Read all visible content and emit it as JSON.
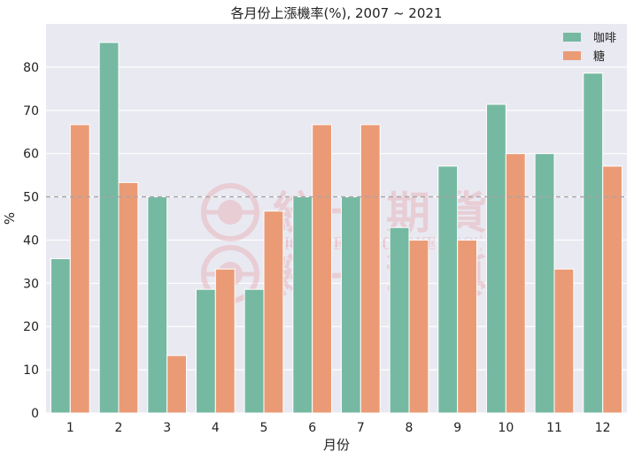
{
  "chart_data": {
    "type": "bar",
    "title": "各月份上漲機率(%), 2007 ~ 2021",
    "xlabel": "月份",
    "ylabel": "%",
    "ylim": [
      0,
      90
    ],
    "yticks": [
      0,
      10,
      20,
      30,
      40,
      50,
      60,
      70,
      80
    ],
    "categories": [
      "1",
      "2",
      "3",
      "4",
      "5",
      "6",
      "7",
      "8",
      "9",
      "10",
      "11",
      "12"
    ],
    "series": [
      {
        "name": "咖啡",
        "color": "#76b9a2",
        "values": [
          35.7,
          85.7,
          50.0,
          28.6,
          28.6,
          50.0,
          50.0,
          42.9,
          57.1,
          71.4,
          60.0,
          78.6
        ]
      },
      {
        "name": "糖",
        "color": "#ea9b76",
        "values": [
          66.7,
          53.3,
          13.3,
          33.3,
          46.7,
          66.7,
          66.7,
          40.0,
          40.0,
          60.0,
          33.3,
          57.1
        ]
      }
    ],
    "reference_line": {
      "value": 50,
      "style": "dashed",
      "color": "#a6a6a6"
    },
    "legend_position": "top-right",
    "grid": true,
    "background": "#e9e9f1"
  },
  "watermark": {
    "name_cn": "統一期貨",
    "name_en": "PRESIDENT FUTURES CO., LTD.",
    "color": "#e8a0a8"
  }
}
